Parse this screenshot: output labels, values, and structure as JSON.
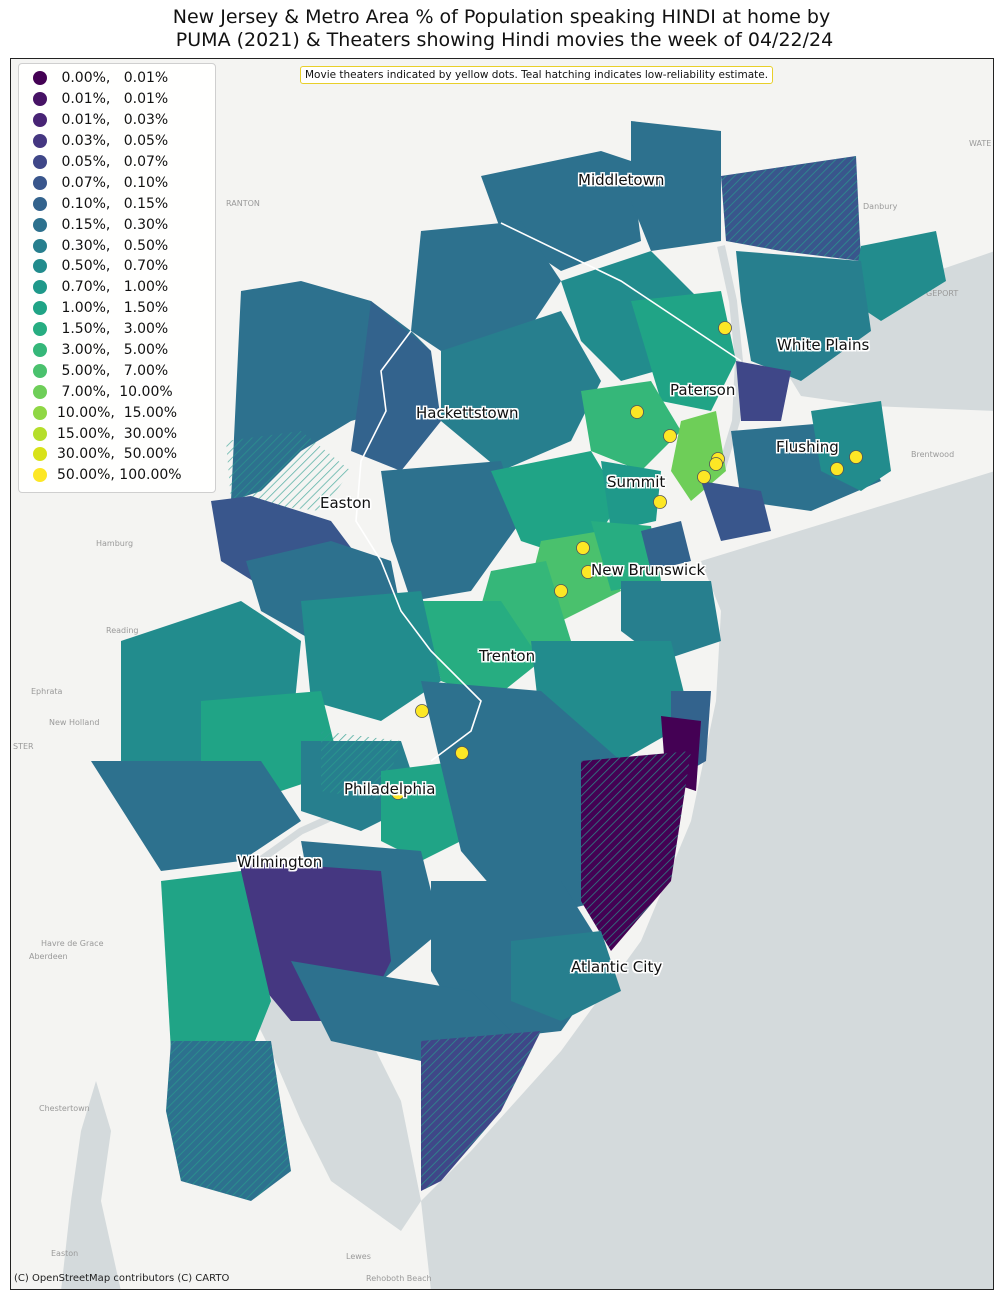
{
  "title": {
    "line1": "New Jersey & Metro Area % of Population speaking HINDI at home by",
    "line2": " PUMA (2021) & Theaters showing Hindi movies the week of 04/22/24"
  },
  "note": "Movie theaters indicated by yellow dots. Teal hatching indicates low-reliability estimate.",
  "credit": "(C) OpenStreetMap contributors (C) CARTO",
  "legend": [
    {
      "label": " 0.00%,   0.01%",
      "color": "#440154"
    },
    {
      "label": " 0.01%,   0.01%",
      "color": "#471365"
    },
    {
      "label": " 0.01%,   0.03%",
      "color": "#482475"
    },
    {
      "label": " 0.03%,   0.05%",
      "color": "#453781"
    },
    {
      "label": " 0.05%,   0.07%",
      "color": "#3f4788"
    },
    {
      "label": " 0.07%,   0.10%",
      "color": "#39568c"
    },
    {
      "label": " 0.10%,   0.15%",
      "color": "#33638d"
    },
    {
      "label": " 0.15%,   0.30%",
      "color": "#2d718e"
    },
    {
      "label": " 0.30%,   0.50%",
      "color": "#277f8e"
    },
    {
      "label": " 0.50%,   0.70%",
      "color": "#228c8d"
    },
    {
      "label": " 0.70%,   1.00%",
      "color": "#1f998a"
    },
    {
      "label": " 1.00%,   1.50%",
      "color": "#20a486"
    },
    {
      "label": " 1.50%,   3.00%",
      "color": "#27ad81"
    },
    {
      "label": " 3.00%,   5.00%",
      "color": "#35b779"
    },
    {
      "label": " 5.00%,   7.00%",
      "color": "#4ac16d"
    },
    {
      "label": " 7.00%,  10.00%",
      "color": "#6ece58"
    },
    {
      "label": "10.00%,  15.00%",
      "color": "#8fd744"
    },
    {
      "label": "15.00%,  30.00%",
      "color": "#b5de2b"
    },
    {
      "label": "30.00%,  50.00%",
      "color": "#d8e219"
    },
    {
      "label": "50.00%, 100.00%",
      "color": "#fde725"
    }
  ],
  "cities": [
    {
      "name": "Middletown"
    },
    {
      "name": "White Plains"
    },
    {
      "name": "Paterson"
    },
    {
      "name": "Hackettstown"
    },
    {
      "name": "Flushing"
    },
    {
      "name": "Summit"
    },
    {
      "name": "Easton"
    },
    {
      "name": "New Brunswick"
    },
    {
      "name": "Trenton"
    },
    {
      "name": "Philadelphia"
    },
    {
      "name": "Wilmington"
    },
    {
      "name": "Atlantic City"
    }
  ],
  "colors": {
    "water": "#d4dadc",
    "land": "#f4f4f2",
    "theater": "#fde725",
    "hatch": "#2a9d8f"
  }
}
